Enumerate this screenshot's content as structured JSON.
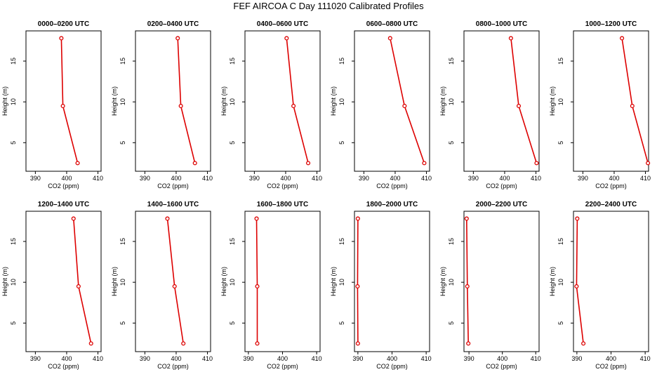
{
  "figure": {
    "title": "FEF AIRCOA C  Day 111020  Calibrated Profiles"
  },
  "colors": {
    "series": "#dd0000",
    "axis": "#000000",
    "background": "#ffffff"
  },
  "chart_data": [
    {
      "type": "line",
      "title": "0000–0200 UTC",
      "xlabel": "CO2 (ppm)",
      "ylabel": "Height (m)",
      "xlim": [
        387,
        411
      ],
      "ylim": [
        1.5,
        18.7
      ],
      "xticks": [
        390,
        400,
        410
      ],
      "yticks": [
        5,
        10,
        15
      ],
      "grid": false,
      "x": [
        398.3,
        398.8,
        403.5
      ],
      "y": [
        17.8,
        9.5,
        2.5
      ]
    },
    {
      "type": "line",
      "title": "0200–0400 UTC",
      "xlabel": "CO2 (ppm)",
      "ylabel": "Height (m)",
      "xlim": [
        387,
        411
      ],
      "ylim": [
        1.5,
        18.7
      ],
      "xticks": [
        390,
        400,
        410
      ],
      "yticks": [
        5,
        10,
        15
      ],
      "grid": false,
      "x": [
        400.5,
        401.5,
        406.0
      ],
      "y": [
        17.8,
        9.5,
        2.5
      ]
    },
    {
      "type": "line",
      "title": "0400–0600 UTC",
      "xlabel": "CO2 (ppm)",
      "ylabel": "Height (m)",
      "xlim": [
        387,
        411
      ],
      "ylim": [
        1.5,
        18.7
      ],
      "xticks": [
        390,
        400,
        410
      ],
      "yticks": [
        5,
        10,
        15
      ],
      "grid": false,
      "x": [
        400.3,
        402.5,
        407.2
      ],
      "y": [
        17.8,
        9.5,
        2.5
      ]
    },
    {
      "type": "line",
      "title": "0600–0800 UTC",
      "xlabel": "CO2 (ppm)",
      "ylabel": "Height (m)",
      "xlim": [
        387,
        411
      ],
      "ylim": [
        1.5,
        18.7
      ],
      "xticks": [
        390,
        400,
        410
      ],
      "yticks": [
        5,
        10,
        15
      ],
      "grid": false,
      "x": [
        398.4,
        403.0,
        409.3
      ],
      "y": [
        17.8,
        9.5,
        2.5
      ]
    },
    {
      "type": "line",
      "title": "0800–1000 UTC",
      "xlabel": "CO2 (ppm)",
      "ylabel": "Height (m)",
      "xlim": [
        387,
        411
      ],
      "ylim": [
        1.5,
        18.7
      ],
      "xticks": [
        390,
        400,
        410
      ],
      "yticks": [
        5,
        10,
        15
      ],
      "grid": false,
      "x": [
        402.0,
        404.5,
        410.2
      ],
      "y": [
        17.8,
        9.5,
        2.5
      ]
    },
    {
      "type": "line",
      "title": "1000–1200 UTC",
      "xlabel": "CO2 (ppm)",
      "ylabel": "Height (m)",
      "xlim": [
        387,
        411
      ],
      "ylim": [
        1.5,
        18.7
      ],
      "xticks": [
        390,
        400,
        410
      ],
      "yticks": [
        5,
        10,
        15
      ],
      "grid": false,
      "x": [
        402.5,
        405.8,
        410.8
      ],
      "y": [
        17.8,
        9.5,
        2.5
      ]
    },
    {
      "type": "line",
      "title": "1200–1400 UTC",
      "xlabel": "CO2 (ppm)",
      "ylabel": "Height (m)",
      "xlim": [
        387,
        411
      ],
      "ylim": [
        1.5,
        18.7
      ],
      "xticks": [
        390,
        400,
        410
      ],
      "yticks": [
        5,
        10,
        15
      ],
      "grid": false,
      "x": [
        402.2,
        403.8,
        407.8
      ],
      "y": [
        17.8,
        9.5,
        2.5
      ]
    },
    {
      "type": "line",
      "title": "1400–1600 UTC",
      "xlabel": "CO2 (ppm)",
      "ylabel": "Height (m)",
      "xlim": [
        387,
        411
      ],
      "ylim": [
        1.5,
        18.7
      ],
      "xticks": [
        390,
        400,
        410
      ],
      "yticks": [
        5,
        10,
        15
      ],
      "grid": false,
      "x": [
        397.2,
        399.5,
        402.3
      ],
      "y": [
        17.8,
        9.5,
        2.5
      ]
    },
    {
      "type": "line",
      "title": "1600–1800 UTC",
      "xlabel": "CO2 (ppm)",
      "ylabel": "Height (m)",
      "xlim": [
        389,
        411
      ],
      "ylim": [
        1.5,
        18.7
      ],
      "xticks": [
        390,
        400,
        410
      ],
      "yticks": [
        5,
        10,
        15
      ],
      "grid": false,
      "x": [
        392.4,
        392.6,
        392.6
      ],
      "y": [
        17.8,
        9.5,
        2.5
      ]
    },
    {
      "type": "line",
      "title": "1800–2000 UTC",
      "xlabel": "CO2 (ppm)",
      "ylabel": "Height (m)",
      "xlim": [
        389,
        411
      ],
      "ylim": [
        1.5,
        18.7
      ],
      "xticks": [
        390,
        400,
        410
      ],
      "yticks": [
        5,
        10,
        15
      ],
      "grid": false,
      "x": [
        390.0,
        389.9,
        390.0
      ],
      "y": [
        17.8,
        9.5,
        2.5
      ]
    },
    {
      "type": "line",
      "title": "2000–2200 UTC",
      "xlabel": "CO2 (ppm)",
      "ylabel": "Height (m)",
      "xlim": [
        388.5,
        411
      ],
      "ylim": [
        1.5,
        18.7
      ],
      "xticks": [
        390,
        400,
        410
      ],
      "yticks": [
        5,
        10,
        15
      ],
      "grid": false,
      "x": [
        389.3,
        389.5,
        389.8
      ],
      "y": [
        17.8,
        9.5,
        2.5
      ]
    },
    {
      "type": "line",
      "title": "2200–2400 UTC",
      "xlabel": "CO2 (ppm)",
      "ylabel": "Height (m)",
      "xlim": [
        389,
        411
      ],
      "ylim": [
        1.5,
        18.7
      ],
      "xticks": [
        390,
        400,
        410
      ],
      "yticks": [
        5,
        10,
        15
      ],
      "grid": false,
      "x": [
        390.1,
        389.9,
        391.9
      ],
      "y": [
        17.8,
        9.5,
        2.5
      ]
    }
  ]
}
